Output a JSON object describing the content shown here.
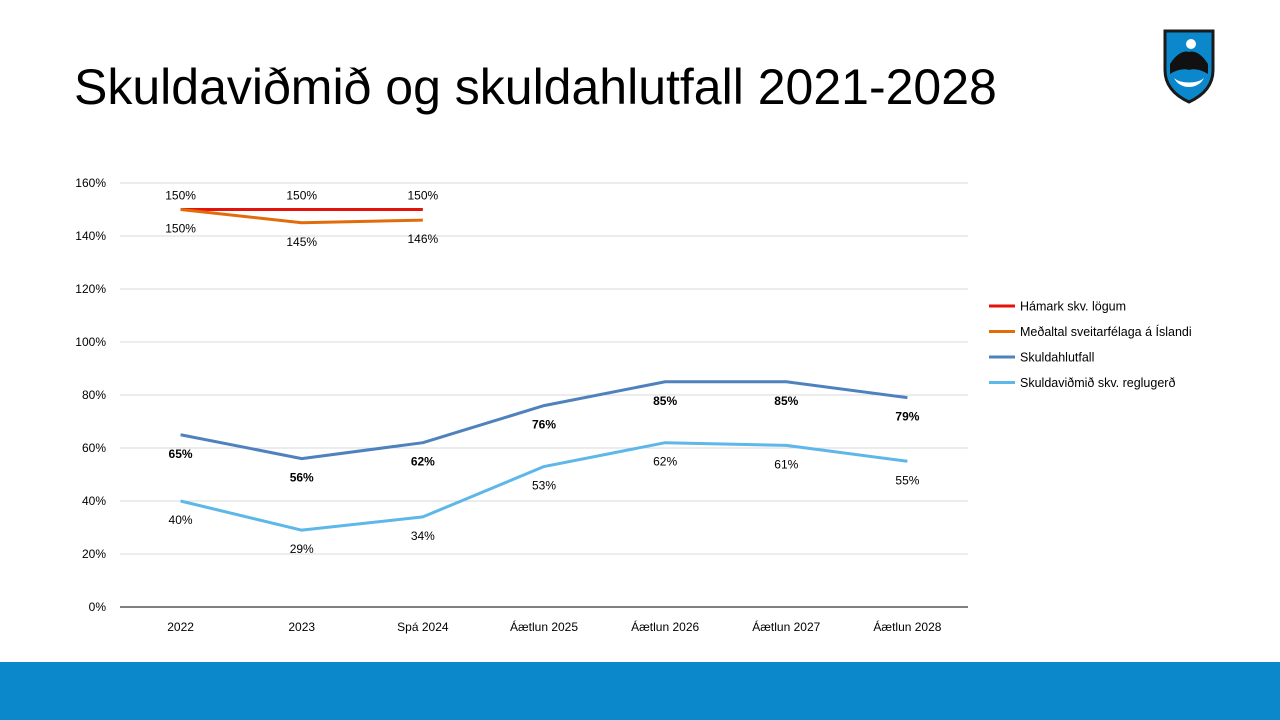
{
  "slide": {
    "title": "Skuldaviðmið og skuldahlutfall 2021-2028",
    "footer_color": "#0b88cc",
    "logo_icon": "coat-of-arms-shield"
  },
  "chart_data": {
    "type": "line",
    "categories": [
      "2022",
      "2023",
      "Spá 2024",
      "Áætlun 2025",
      "Áætlun 2026",
      "Áætlun 2027",
      "Áætlun 2028"
    ],
    "ylim": [
      0,
      160
    ],
    "yticks": [
      "0%",
      "20%",
      "40%",
      "60%",
      "80%",
      "100%",
      "120%",
      "140%",
      "160%"
    ],
    "ytick_values": [
      0,
      20,
      40,
      60,
      80,
      100,
      120,
      140,
      160
    ],
    "grid": true,
    "legend_position": "right",
    "series": [
      {
        "name": "Hámark skv. lögum",
        "color": "#e3120b",
        "values": [
          150,
          150,
          150,
          null,
          null,
          null,
          null
        ],
        "labels": [
          "150%",
          "150%",
          "150%",
          "",
          "",
          "",
          ""
        ],
        "label_side": "above",
        "bold": false
      },
      {
        "name": "Meðaltal sveitarfélaga á Íslandi",
        "color": "#e36c0a",
        "values": [
          150,
          145,
          146,
          null,
          null,
          null,
          null
        ],
        "labels": [
          "150%",
          "145%",
          "146%",
          "",
          "",
          "",
          ""
        ],
        "label_side": "below",
        "bold": false
      },
      {
        "name": "Skuldahlutfall",
        "color": "#4f81bd",
        "values": [
          65,
          56,
          62,
          76,
          85,
          85,
          79
        ],
        "labels": [
          "65%",
          "56%",
          "62%",
          "76%",
          "85%",
          "85%",
          "79%"
        ],
        "label_side": "below",
        "bold": true
      },
      {
        "name": "Skuldaviðmið skv. reglugerð",
        "color": "#5db7e8",
        "values": [
          40,
          29,
          34,
          53,
          62,
          61,
          55
        ],
        "labels": [
          "40%",
          "29%",
          "34%",
          "53%",
          "62%",
          "61%",
          "55%"
        ],
        "label_side": "below",
        "bold": false
      }
    ]
  }
}
